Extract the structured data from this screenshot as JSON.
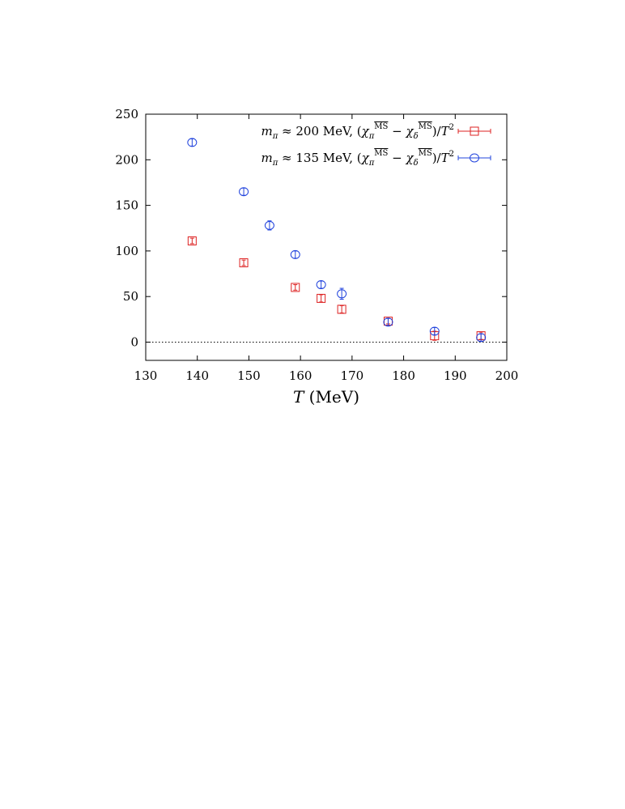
{
  "chart_data": {
    "type": "scatter",
    "title": "",
    "xlabel": "T (MeV)",
    "ylabel": "",
    "xlim": [
      130,
      200
    ],
    "ylim": [
      -20,
      250
    ],
    "xticks": [
      130,
      140,
      150,
      160,
      170,
      180,
      190,
      200
    ],
    "yticks": [
      0,
      50,
      100,
      150,
      200,
      250
    ],
    "reference_line": {
      "y": 0,
      "style": "dotted"
    },
    "legend_position": "top-right",
    "series": [
      {
        "name": "m_π ≈ 200 MeV, (χ_π^MS − χ_δ^MS)/T²",
        "marker": "square",
        "color": "#dd2222",
        "x": [
          139,
          149,
          159,
          164,
          168,
          177,
          186,
          195
        ],
        "y": [
          111,
          87,
          60,
          48,
          36,
          23,
          7,
          7
        ],
        "yerr": [
          3,
          3,
          3,
          4,
          4,
          3,
          5,
          4
        ]
      },
      {
        "name": "m_π ≈ 135 MeV, (χ_π^MS − χ_δ^MS)/T²",
        "marker": "circle",
        "color": "#2244dd",
        "x": [
          139,
          149,
          154,
          159,
          164,
          168,
          177,
          186,
          195
        ],
        "y": [
          219,
          165,
          128,
          96,
          63,
          53,
          22,
          12,
          5
        ],
        "yerr": [
          4,
          4,
          5,
          4,
          4,
          6,
          4,
          4,
          4
        ]
      }
    ]
  }
}
